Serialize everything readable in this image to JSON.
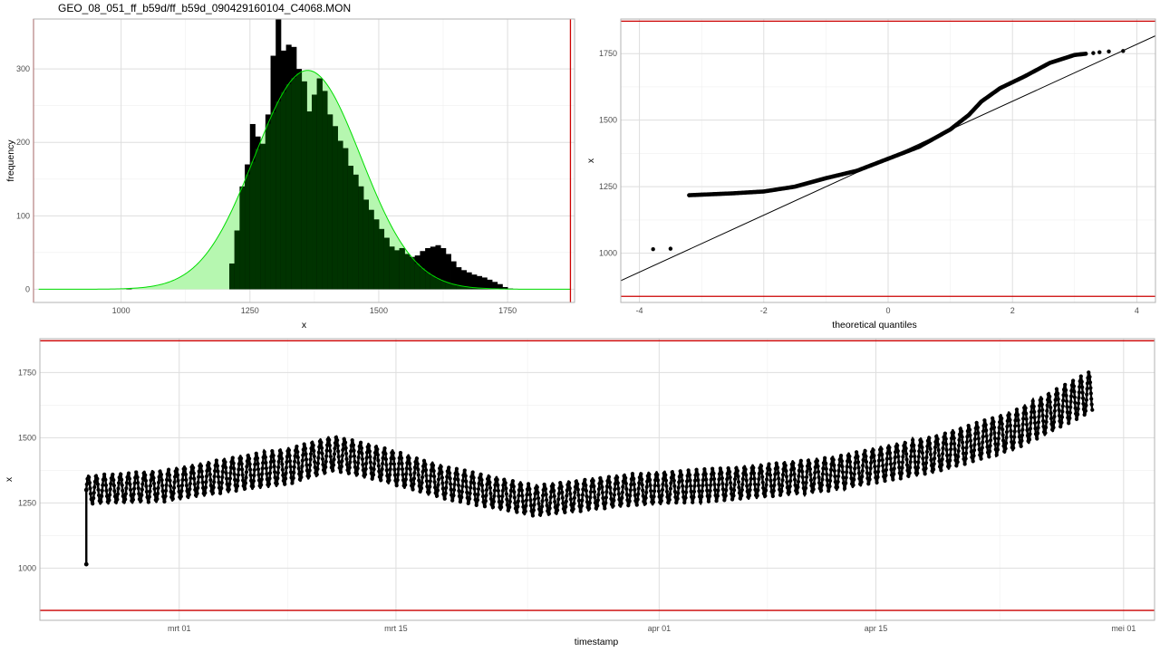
{
  "window_title": "GEO_08_051_ff_b59d/ff_b59d_090429160104_C4068.MON",
  "colors": {
    "bar": "#000000",
    "density_fill": "#b6f7b0",
    "density_line": "#00dd00",
    "overlap": "#003300",
    "limit": "#cc0000",
    "points": "#000000"
  },
  "chart_data": [
    {
      "type": "bar",
      "id": "histogram",
      "xlabel": "x",
      "ylabel": "frequency",
      "xlim": [
        830,
        1880
      ],
      "ylim": [
        -18,
        368
      ],
      "x_ticks": [
        1000,
        1250,
        1500,
        1750
      ],
      "y_ticks": [
        0,
        100,
        200,
        300
      ],
      "grid": true,
      "limits_x": [
        830,
        1872
      ],
      "density_mean": 1362,
      "density_sd": 103,
      "density_peak": 298,
      "bin_width": 10,
      "bins": [
        {
          "x": 1010,
          "y": 1
        },
        {
          "x": 1210,
          "y": 35
        },
        {
          "x": 1220,
          "y": 80
        },
        {
          "x": 1230,
          "y": 140
        },
        {
          "x": 1240,
          "y": 170
        },
        {
          "x": 1250,
          "y": 225
        },
        {
          "x": 1260,
          "y": 208
        },
        {
          "x": 1270,
          "y": 198
        },
        {
          "x": 1280,
          "y": 238
        },
        {
          "x": 1290,
          "y": 318
        },
        {
          "x": 1300,
          "y": 368
        },
        {
          "x": 1310,
          "y": 325
        },
        {
          "x": 1320,
          "y": 333
        },
        {
          "x": 1330,
          "y": 330
        },
        {
          "x": 1340,
          "y": 300
        },
        {
          "x": 1350,
          "y": 283
        },
        {
          "x": 1360,
          "y": 242
        },
        {
          "x": 1370,
          "y": 265
        },
        {
          "x": 1380,
          "y": 287
        },
        {
          "x": 1390,
          "y": 270
        },
        {
          "x": 1400,
          "y": 238
        },
        {
          "x": 1410,
          "y": 222
        },
        {
          "x": 1420,
          "y": 202
        },
        {
          "x": 1430,
          "y": 192
        },
        {
          "x": 1440,
          "y": 168
        },
        {
          "x": 1450,
          "y": 156
        },
        {
          "x": 1460,
          "y": 140
        },
        {
          "x": 1470,
          "y": 122
        },
        {
          "x": 1480,
          "y": 108
        },
        {
          "x": 1490,
          "y": 95
        },
        {
          "x": 1500,
          "y": 82
        },
        {
          "x": 1510,
          "y": 70
        },
        {
          "x": 1520,
          "y": 58
        },
        {
          "x": 1530,
          "y": 53
        },
        {
          "x": 1540,
          "y": 56
        },
        {
          "x": 1550,
          "y": 48
        },
        {
          "x": 1560,
          "y": 44
        },
        {
          "x": 1570,
          "y": 46
        },
        {
          "x": 1580,
          "y": 52
        },
        {
          "x": 1590,
          "y": 56
        },
        {
          "x": 1600,
          "y": 58
        },
        {
          "x": 1610,
          "y": 60
        },
        {
          "x": 1620,
          "y": 56
        },
        {
          "x": 1630,
          "y": 48
        },
        {
          "x": 1640,
          "y": 38
        },
        {
          "x": 1650,
          "y": 30
        },
        {
          "x": 1660,
          "y": 26
        },
        {
          "x": 1670,
          "y": 23
        },
        {
          "x": 1680,
          "y": 20
        },
        {
          "x": 1690,
          "y": 18
        },
        {
          "x": 1700,
          "y": 16
        },
        {
          "x": 1710,
          "y": 13
        },
        {
          "x": 1720,
          "y": 10
        },
        {
          "x": 1730,
          "y": 7
        },
        {
          "x": 1740,
          "y": 3
        },
        {
          "x": 1750,
          "y": 1
        }
      ]
    },
    {
      "type": "scatter",
      "id": "qqplot",
      "xlabel": "theoretical quantiles",
      "ylabel": "x",
      "xlim": [
        -4.3,
        4.3
      ],
      "ylim": [
        815,
        1880
      ],
      "x_ticks": [
        -4,
        -2,
        0,
        2,
        4
      ],
      "y_ticks": [
        1000,
        1250,
        1500,
        1750
      ],
      "grid": true,
      "limits_y": [
        838,
        1872
      ],
      "reference_line": {
        "intercept": 1357,
        "slope": 107
      },
      "quantile_curve": [
        {
          "q": -3.2,
          "v": 1218
        },
        {
          "q": -2.5,
          "v": 1225
        },
        {
          "q": -2.0,
          "v": 1232
        },
        {
          "q": -1.5,
          "v": 1250
        },
        {
          "q": -1.0,
          "v": 1282
        },
        {
          "q": -0.5,
          "v": 1310
        },
        {
          "q": 0.0,
          "v": 1355
        },
        {
          "q": 0.5,
          "v": 1400
        },
        {
          "q": 1.0,
          "v": 1465
        },
        {
          "q": 1.3,
          "v": 1520
        },
        {
          "q": 1.5,
          "v": 1570
        },
        {
          "q": 1.8,
          "v": 1620
        },
        {
          "q": 2.2,
          "v": 1665
        },
        {
          "q": 2.6,
          "v": 1715
        },
        {
          "q": 3.0,
          "v": 1745
        },
        {
          "q": 3.2,
          "v": 1750
        }
      ],
      "outliers": [
        {
          "q": -3.78,
          "v": 1015
        },
        {
          "q": -3.5,
          "v": 1017
        },
        {
          "q": 3.3,
          "v": 1752
        },
        {
          "q": 3.4,
          "v": 1755
        },
        {
          "q": 3.55,
          "v": 1758
        },
        {
          "q": 3.78,
          "v": 1760
        }
      ]
    },
    {
      "type": "line",
      "id": "timeseries",
      "xlabel": "timestamp",
      "ylabel": "x",
      "xlim": [
        "2009-02-20",
        "2009-05-03"
      ],
      "ylim": [
        800,
        1880
      ],
      "x_ticks": [
        "mrt 01",
        "mrt 15",
        "apr 01",
        "apr 15",
        "mei 01"
      ],
      "y_ticks": [
        1000,
        1250,
        1500,
        1750
      ],
      "grid": true,
      "limits_y": [
        838,
        1872
      ],
      "tidal_period_days": 0.517,
      "trend": [
        {
          "t": "2009-02-23",
          "v": 1300
        },
        {
          "t": "2009-02-28",
          "v": 1315
        },
        {
          "t": "2009-03-05",
          "v": 1365
        },
        {
          "t": "2009-03-08",
          "v": 1390
        },
        {
          "t": "2009-03-11",
          "v": 1440
        },
        {
          "t": "2009-03-14",
          "v": 1400
        },
        {
          "t": "2009-03-18",
          "v": 1330
        },
        {
          "t": "2009-03-24",
          "v": 1258
        },
        {
          "t": "2009-03-30",
          "v": 1300
        },
        {
          "t": "2009-04-06",
          "v": 1325
        },
        {
          "t": "2009-04-12",
          "v": 1360
        },
        {
          "t": "2009-04-19",
          "v": 1440
        },
        {
          "t": "2009-04-24",
          "v": 1530
        },
        {
          "t": "2009-04-29",
          "v": 1680
        }
      ],
      "amplitude": [
        {
          "t": "2009-02-23",
          "v": 55
        },
        {
          "t": "2009-03-08",
          "v": 70
        },
        {
          "t": "2009-03-24",
          "v": 60
        },
        {
          "t": "2009-04-12",
          "v": 65
        },
        {
          "t": "2009-04-29",
          "v": 80
        }
      ],
      "first_point": {
        "t": "2009-02-23",
        "v": 1015
      }
    }
  ]
}
